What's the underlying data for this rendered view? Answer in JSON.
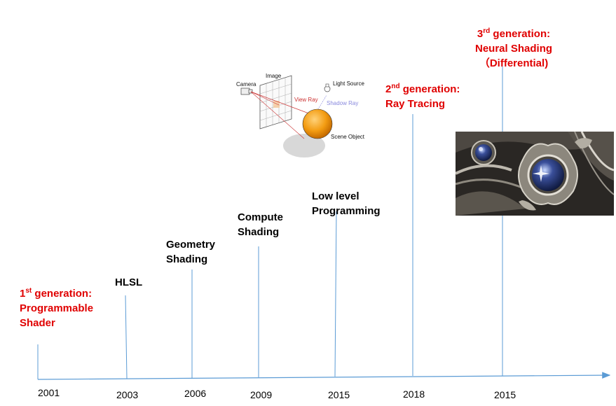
{
  "milestones": [
    {
      "id": "g1",
      "l1_pre": "1",
      "l1_sup": "st",
      "l1_post": " generation:",
      "l2": "Programmable",
      "l3": "Shader",
      "year": "2001"
    },
    {
      "id": "hlsl",
      "l1": "HLSL",
      "year": "2003"
    },
    {
      "id": "geo",
      "l1": "Geometry",
      "l2": "Shading",
      "year": "2006"
    },
    {
      "id": "comp",
      "l1": "Compute",
      "l2": "Shading",
      "year": "2009"
    },
    {
      "id": "low",
      "l1": "Low level",
      "l2": "Programming",
      "year": "2015"
    },
    {
      "id": "g2",
      "l1_pre": "2",
      "l1_sup": "nd",
      "l1_post": " generation:",
      "l2": "Ray Tracing",
      "year": "2018"
    },
    {
      "id": "g3",
      "l1_pre": "3",
      "l1_sup": "rd",
      "l1_post": "  generation:",
      "l2": "Neural Shading",
      "l3": "（Differential)",
      "year": "2015"
    }
  ],
  "raytrace_diagram": {
    "image": "Image",
    "camera": "Camera",
    "light_source": "Light Source",
    "view_ray": "View Ray",
    "shadow_ray": "Shadow Ray",
    "scene_object": "Scene Object"
  },
  "colors": {
    "axis": "#5b9bd5",
    "highlight": "#e00000",
    "sphere": "#f39c12"
  }
}
